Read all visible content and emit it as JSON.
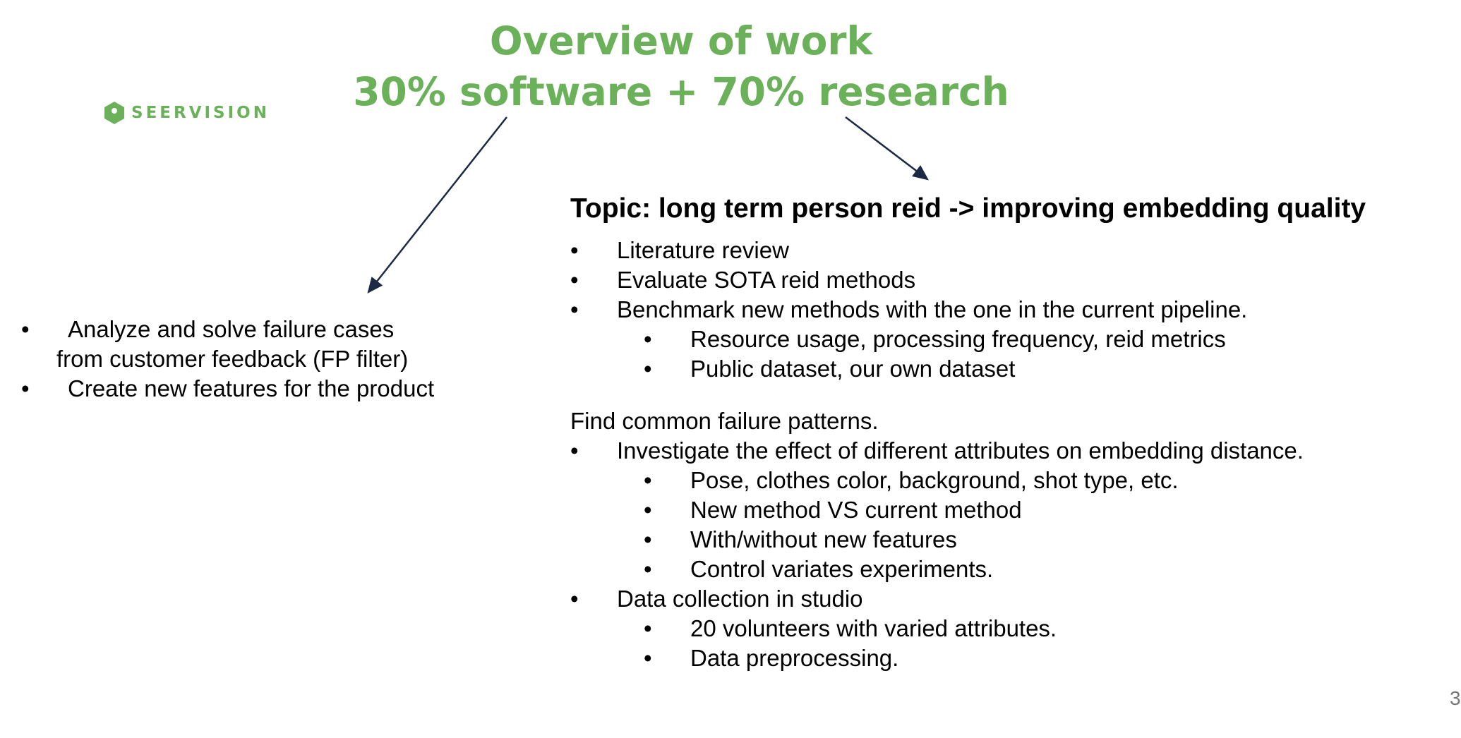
{
  "title": {
    "line1": "Overview of work",
    "line2": "30% software + 70% research"
  },
  "logo": {
    "text": "SEERVISION",
    "icon": "hexagon-logo-icon",
    "color": "#6ab15a"
  },
  "accent_color": "#6ab15a",
  "arrow_color": "#1b2a44",
  "software": {
    "items": [
      {
        "bullet": "•",
        "line1": "Analyze and solve failure cases",
        "line2": "from customer feedback (FP filter)"
      },
      {
        "bullet": "•",
        "line1": "Create new features for the product"
      }
    ]
  },
  "research": {
    "topic": "Topic: long term person reid -> improving embedding quality",
    "section1": [
      {
        "bullet": "•",
        "text": "Literature review"
      },
      {
        "bullet": "•",
        "text": "Evaluate SOTA reid methods"
      },
      {
        "bullet": "•",
        "text": "Benchmark new methods with the one in the current pipeline."
      },
      {
        "bullet": "•",
        "text": "Resource usage, processing frequency, reid metrics"
      },
      {
        "bullet": "•",
        "text": "Public dataset, our own dataset"
      }
    ],
    "section2_heading": "Find common failure patterns.",
    "section2": [
      {
        "bullet": "•",
        "text": "Investigate the effect of different attributes on embedding distance."
      },
      {
        "bullet": "•",
        "text": "Pose, clothes color, background, shot type, etc."
      },
      {
        "bullet": "•",
        "text": "New method VS current method"
      },
      {
        "bullet": "•",
        "text": "With/without new features"
      },
      {
        "bullet": "•",
        "text": "Control variates experiments."
      },
      {
        "bullet": "•",
        "text": "Data collection in studio"
      },
      {
        "bullet": "•",
        "text": "20 volunteers with varied attributes."
      },
      {
        "bullet": "•",
        "text": "Data preprocessing."
      }
    ]
  },
  "page_number": "3"
}
